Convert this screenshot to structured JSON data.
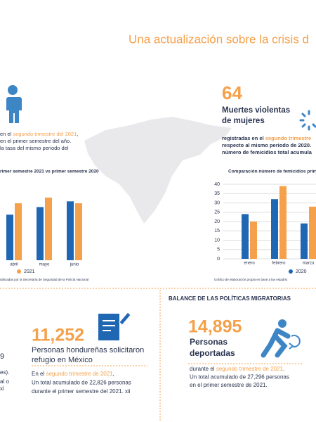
{
  "title": "Una actualización sobre la crisis d",
  "homicides": {
    "lines": [
      [
        "en el ",
        "segundo trimestre del 2021",
        ","
      ],
      [
        "en el primer semestre del año."
      ],
      [
        "la tasa del mismo periodo del"
      ]
    ]
  },
  "femicides": {
    "number": 64,
    "heading": [
      "Muertes violentas",
      "de mujeres"
    ],
    "lines": [
      [
        "registradas en el ",
        "segundo trimestre"
      ],
      [
        "respecto al mismo periodo de 2020."
      ],
      [
        "número de femicidios total acumula"
      ]
    ]
  },
  "chart_data": [
    {
      "type": "bar",
      "title": "rimer semestre 2021 vs primer semestre 2020",
      "source": "ublicadas por la Secretaría de Seguridad de la Policía Nacional",
      "categories": [
        "abril",
        "mayo",
        "junio"
      ],
      "ylim": [
        0,
        40
      ],
      "series": [
        {
          "color": "#1f66b3",
          "values": [
            24,
            28,
            31
          ]
        },
        {
          "name": "2021",
          "color": "#f5a04a",
          "values": [
            30,
            33,
            30
          ]
        }
      ]
    },
    {
      "type": "bar",
      "title": "Comparación número de femicidios prim",
      "source": "Gráfico de elaboración propia en base a las estadíst",
      "categories": [
        "enero",
        "febrero",
        "marzo"
      ],
      "ylim": [
        0,
        40
      ],
      "yticks": [
        0,
        5,
        10,
        15,
        20,
        25,
        30,
        35,
        40
      ],
      "grid": true,
      "series": [
        {
          "name": "2020",
          "color": "#1f66b3",
          "values": [
            24,
            32,
            19
          ]
        },
        {
          "color": "#f5a04a",
          "values": [
            20,
            39,
            28
          ]
        }
      ]
    }
  ],
  "migration": {
    "header": "BALANCE DE LAS POLÍTICAS MIGRATORIAS",
    "deportations": {
      "number": "14,895",
      "label": [
        "Personas",
        "deportadas"
      ],
      "lines": [
        [
          "durante el ",
          "segundo trimestre de 2021",
          "."
        ],
        [
          "Un total acumulado de 27,296 personas"
        ],
        [
          "en el primer semestre de 2021."
        ]
      ]
    },
    "refugees": {
      "number": "11,252",
      "label": [
        "Personas hondureñas solicitaron",
        "refugio en México"
      ],
      "lines": [
        [
          "En el ",
          "segundo trimestre de 2021",
          ","
        ],
        [
          "Un total acumulado de 22,826 personas"
        ],
        [
          "durante el primer semestre del 2021. xii"
        ]
      ]
    }
  },
  "fragments": [
    "9",
    "es).",
    "al o",
    "xi"
  ]
}
